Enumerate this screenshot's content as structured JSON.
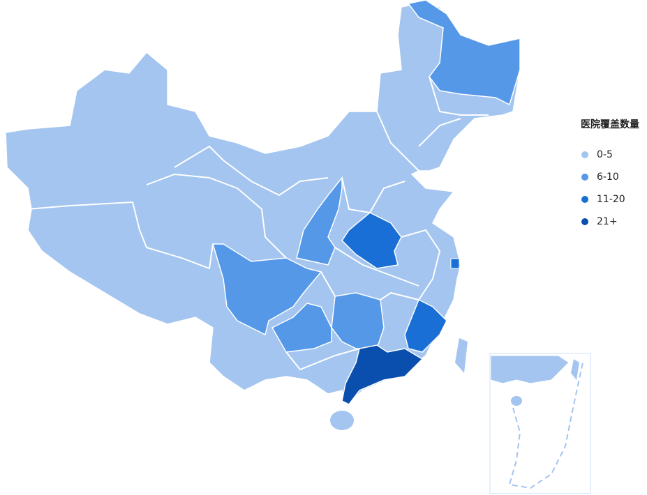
{
  "legend": {
    "title": "医院覆盖数量",
    "items": [
      {
        "label": "0-5",
        "color": "#a3c5f0"
      },
      {
        "label": "6-10",
        "color": "#5598e8"
      },
      {
        "label": "11-20",
        "color": "#1a6fd6"
      },
      {
        "label": "21+",
        "color": "#0a4fad"
      }
    ]
  },
  "regions": [
    {
      "name": "Heilongjiang",
      "bucket": 1
    },
    {
      "name": "Shaanxi",
      "bucket": 1
    },
    {
      "name": "Sichuan",
      "bucket": 1
    },
    {
      "name": "Guizhou",
      "bucket": 1
    },
    {
      "name": "Hunan",
      "bucket": 1
    },
    {
      "name": "Henan",
      "bucket": 2
    },
    {
      "name": "Fujian",
      "bucket": 2
    },
    {
      "name": "Shanghai",
      "bucket": 2
    },
    {
      "name": "Guangdong",
      "bucket": 3
    }
  ],
  "default_bucket": 0
}
